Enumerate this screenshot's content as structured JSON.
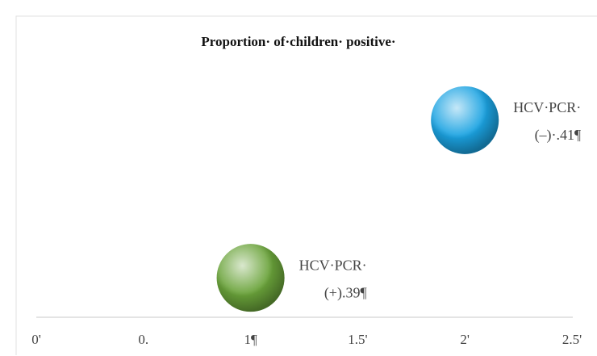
{
  "chart_data": {
    "type": "scatter",
    "title": "Proportion· of·children· positive·",
    "xlim": [
      0,
      2.5
    ],
    "xticks": [
      {
        "value": 0,
        "label": "0'"
      },
      {
        "value": 0.5,
        "label": "0."
      },
      {
        "value": 1,
        "label": "1¶"
      },
      {
        "value": 1.5,
        "label": "1.5'"
      },
      {
        "value": 2,
        "label": "2'"
      },
      {
        "value": 2.5,
        "label": "2.5'"
      }
    ],
    "ylim": [
      0.385,
      0.415
    ],
    "series": [
      {
        "name": "HCV·PCR·",
        "color": "#1ba3e2",
        "x": [
          2
        ],
        "values": [
          0.41
        ],
        "value_labels": [
          "(–)·.41¶"
        ]
      },
      {
        "name": "HCV·PCR·",
        "color": "#6aa33a",
        "x": [
          1
        ],
        "values": [
          0.39
        ],
        "value_labels": [
          "(+).39¶"
        ]
      }
    ]
  }
}
